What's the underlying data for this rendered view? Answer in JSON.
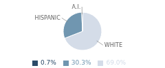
{
  "chart_data": {
    "type": "pie",
    "categories": [
      "WHITE",
      "HISPANIC",
      "A.I."
    ],
    "values": [
      69.0,
      30.3,
      0.7
    ],
    "value_labels": [
      "69.0%",
      "30.3%",
      "0.7%"
    ],
    "colors": [
      "#d4dce8",
      "#7096b0",
      "#2b4a68"
    ],
    "legend": "bottom"
  }
}
